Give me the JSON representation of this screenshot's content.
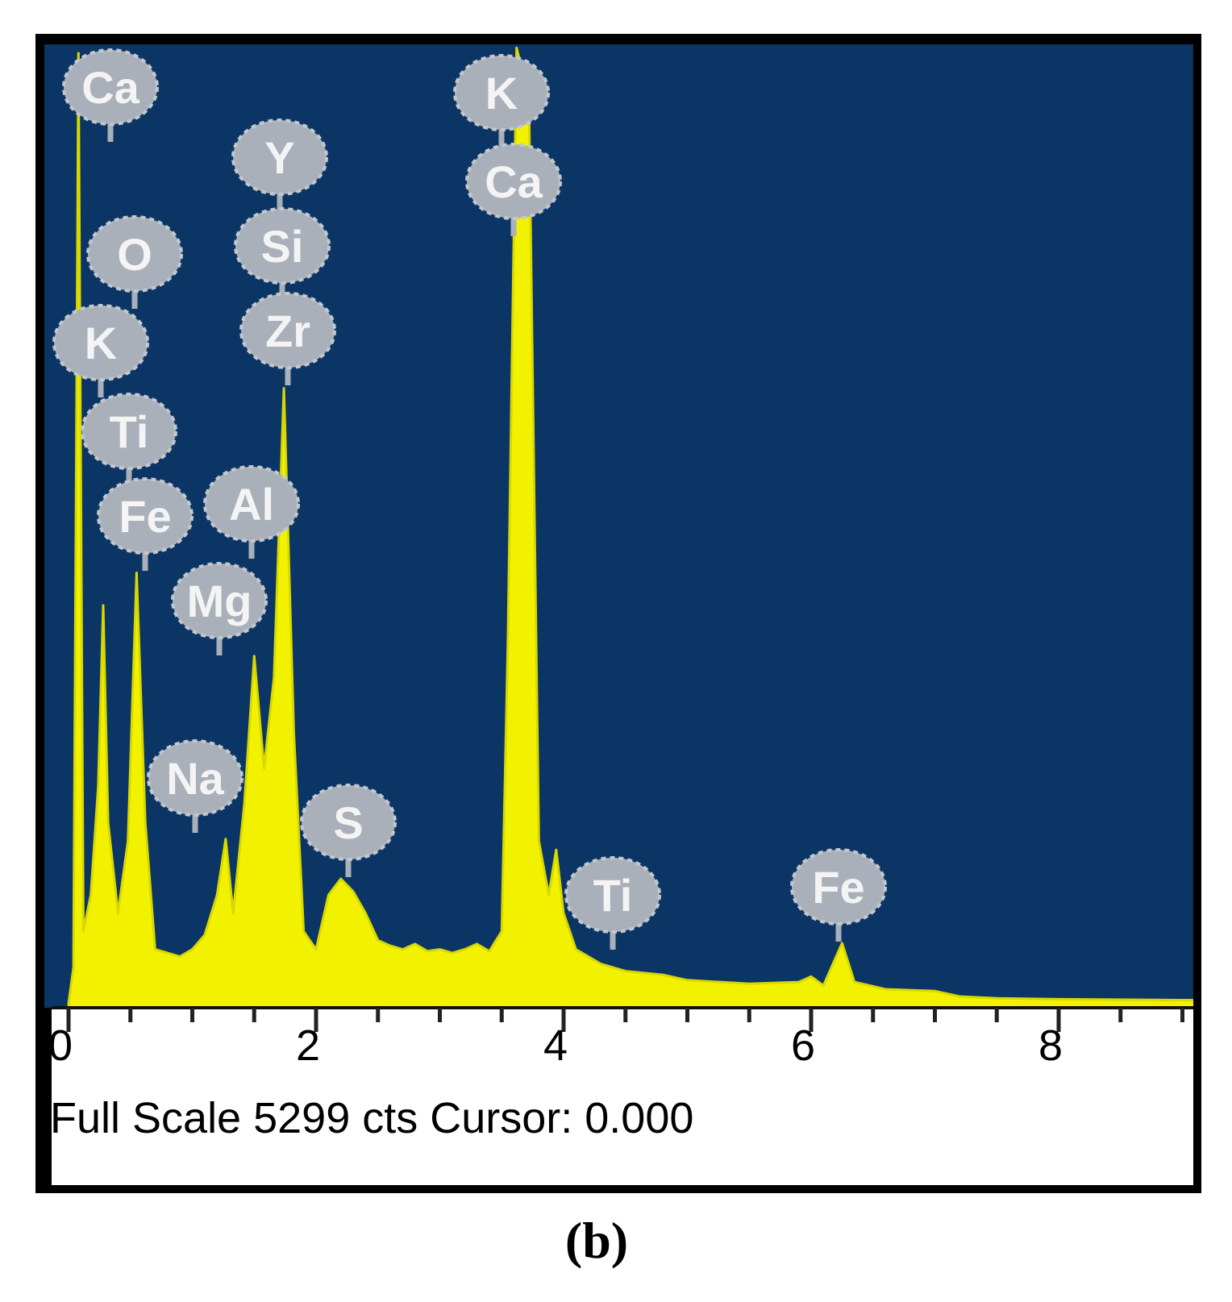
{
  "chart_data": {
    "type": "area",
    "color": "#f2f200",
    "background": "#0b3565",
    "xlim": [
      0,
      9.25
    ],
    "ylim": [
      0,
      5299
    ],
    "xticks": [
      0,
      2,
      4,
      6,
      8
    ],
    "xminor_ticks": [
      0.5,
      1,
      1.5,
      2.5,
      3,
      3.5,
      4.5,
      5,
      5.5,
      6.5,
      7,
      7.5,
      8.5,
      9
    ],
    "x": [
      0,
      0.04,
      0.08,
      0.12,
      0.18,
      0.24,
      0.28,
      0.32,
      0.4,
      0.48,
      0.55,
      0.62,
      0.7,
      0.8,
      0.9,
      1.0,
      1.1,
      1.2,
      1.27,
      1.33,
      1.42,
      1.5,
      1.58,
      1.66,
      1.74,
      1.82,
      1.9,
      2.0,
      2.1,
      2.2,
      2.3,
      2.4,
      2.5,
      2.6,
      2.7,
      2.8,
      2.9,
      3.0,
      3.1,
      3.2,
      3.3,
      3.4,
      3.5,
      3.55,
      3.62,
      3.72,
      3.8,
      3.88,
      3.94,
      4.0,
      4.1,
      4.3,
      4.5,
      4.8,
      5.0,
      5.5,
      5.9,
      6.0,
      6.1,
      6.25,
      6.35,
      6.6,
      7.0,
      7.2,
      7.5,
      8.0,
      9.0,
      9.25
    ],
    "values": [
      0,
      200,
      5250,
      400,
      600,
      1200,
      2200,
      1000,
      500,
      900,
      2380,
      1000,
      300,
      280,
      260,
      300,
      380,
      600,
      910,
      500,
      1100,
      1920,
      1300,
      1800,
      3400,
      1500,
      400,
      300,
      600,
      690,
      620,
      500,
      350,
      320,
      300,
      330,
      290,
      300,
      280,
      300,
      330,
      290,
      400,
      2000,
      5280,
      5000,
      900,
      600,
      850,
      500,
      300,
      220,
      180,
      160,
      130,
      110,
      120,
      150,
      100,
      335,
      120,
      80,
      70,
      40,
      30,
      25,
      20,
      20
    ],
    "annotations": [
      "Ca",
      "Y",
      "O",
      "Si",
      "K",
      "Zr",
      "Ti",
      "Al",
      "Fe",
      "Mg",
      "K",
      "Ca",
      "Na",
      "S",
      "Ti",
      "Fe"
    ],
    "status_text": "Full Scale 5299 cts Cursor: 0.000",
    "caption": "(b)"
  }
}
